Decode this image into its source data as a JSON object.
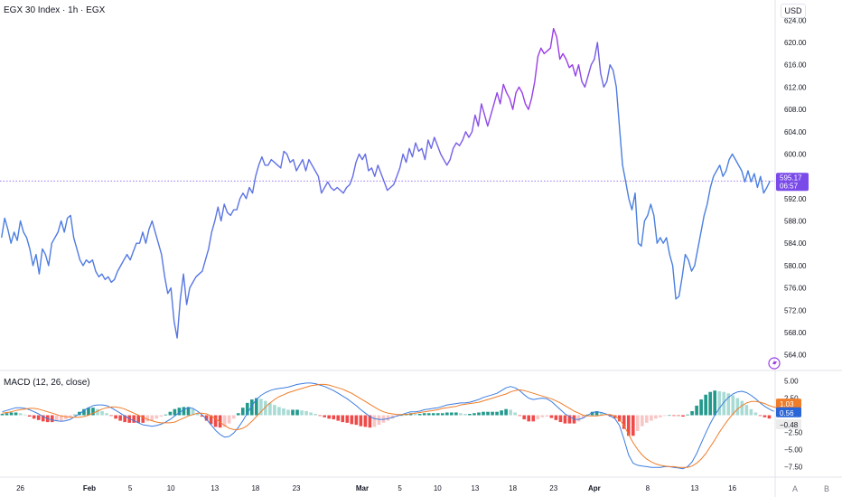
{
  "header": {
    "title": "EGX 30 Index · 1h · EGX"
  },
  "price_axis": {
    "currency": "USD"
  },
  "macd_panel": {
    "title": "MACD (12, 26, close)"
  },
  "colors": {
    "line_start": "#4a7fe0",
    "line_end": "#9a3ee8",
    "macd_line": "#3c7de0",
    "signal_line": "#f07d2a",
    "hist_pos_strong": "#22998c",
    "hist_pos_weak": "#a9dbd5",
    "hist_neg_strong": "#ef4a4a",
    "hist_neg_weak": "#f9c6c6",
    "price_badge": "#7b4bea",
    "badge_orange": "#f07d2a",
    "badge_blue": "#2b66d9",
    "badge_gray": "#ececec"
  },
  "footer": {
    "auto_label": "A",
    "log_label": "B"
  },
  "chart_data": [
    {
      "type": "line",
      "title": "EGX 30 Index · 1h · EGX",
      "ylim": [
        562,
        626
      ],
      "y_ticks": [
        "624.00",
        "620.00",
        "616.00",
        "612.00",
        "608.00",
        "604.00",
        "600.00",
        "596.00",
        "592.00",
        "588.00",
        "584.00",
        "580.00",
        "576.00",
        "572.00",
        "568.00",
        "564.00"
      ],
      "y_tick_values": [
        624,
        620,
        616,
        612,
        608,
        604,
        600,
        596,
        592,
        588,
        584,
        580,
        576,
        572,
        568,
        564
      ],
      "x_tick_labels": [
        "26",
        "Feb",
        "5",
        "10",
        "13",
        "18",
        "23",
        "Mar",
        "5",
        "10",
        "13",
        "18",
        "23",
        "Apr",
        "8",
        "13",
        "16"
      ],
      "x_tick_index": [
        6,
        28,
        41,
        54,
        68,
        81,
        94,
        115,
        127,
        139,
        151,
        163,
        176,
        189,
        206,
        221,
        233
      ],
      "last_price": "595.17",
      "countdown": "06:57",
      "values": [
        585.0,
        588.5,
        586.5,
        584.0,
        586.0,
        584.5,
        588.0,
        586.0,
        585.0,
        583.0,
        580.0,
        582.0,
        578.5,
        583.0,
        582.0,
        580.0,
        584.0,
        585.0,
        586.0,
        588.0,
        586.0,
        588.5,
        589.0,
        585.0,
        583.0,
        581.0,
        580.0,
        581.0,
        580.5,
        581.0,
        579.0,
        578.0,
        578.5,
        577.5,
        578.0,
        577.0,
        577.5,
        579.0,
        580.0,
        581.0,
        582.0,
        581.0,
        582.5,
        584.0,
        584.0,
        586.0,
        584.0,
        586.5,
        588.0,
        586.0,
        584.0,
        582.0,
        578.0,
        575.0,
        576.0,
        570.0,
        567.0,
        574.0,
        578.5,
        573.0,
        576.0,
        577.0,
        578.0,
        578.5,
        579.0,
        581.0,
        583.0,
        586.0,
        588.0,
        590.5,
        588.0,
        591.0,
        589.5,
        589.0,
        590.0,
        590.0,
        592.0,
        593.0,
        592.0,
        594.0,
        593.0,
        596.0,
        598.0,
        599.5,
        598.0,
        598.0,
        599.0,
        598.5,
        598.0,
        597.5,
        600.5,
        600.0,
        598.5,
        599.0,
        597.0,
        598.0,
        599.0,
        597.0,
        599.0,
        598.0,
        597.0,
        596.0,
        593.0,
        594.0,
        595.0,
        594.0,
        593.5,
        594.0,
        593.5,
        593.0,
        594.0,
        594.5,
        596.0,
        598.5,
        600.0,
        599.0,
        600.0,
        597.0,
        597.5,
        596.0,
        598.0,
        596.5,
        595.0,
        593.5,
        594.0,
        594.5,
        596.0,
        597.5,
        600.0,
        598.5,
        601.0,
        599.5,
        602.0,
        600.5,
        601.0,
        599.0,
        602.5,
        601.0,
        603.0,
        601.5,
        600.0,
        599.0,
        598.0,
        599.0,
        601.0,
        602.0,
        601.5,
        602.5,
        604.0,
        603.0,
        604.0,
        607.0,
        605.0,
        609.0,
        607.0,
        605.0,
        607.0,
        609.0,
        611.0,
        609.0,
        612.5,
        611.0,
        610.0,
        608.0,
        611.0,
        612.0,
        611.0,
        609.0,
        608.0,
        610.0,
        613.0,
        617.5,
        619.0,
        618.0,
        618.5,
        619.0,
        622.5,
        621.0,
        617.0,
        618.0,
        617.0,
        615.5,
        616.0,
        614.0,
        616.0,
        613.0,
        612.0,
        614.0,
        616.0,
        617.0,
        620.0,
        614.5,
        612.0,
        613.0,
        616.0,
        615.0,
        612.0,
        605.0,
        598.0,
        595.0,
        592.0,
        590.0,
        593.0,
        584.0,
        583.5,
        588.0,
        589.0,
        591.0,
        589.0,
        584.0,
        585.0,
        584.0,
        585.0,
        582.0,
        580.0,
        574.0,
        574.5,
        578.0,
        582.0,
        581.0,
        579.0,
        580.0,
        583.0,
        586.0,
        589.0,
        591.0,
        594.0,
        596.0,
        597.0,
        598.0,
        596.0,
        597.0,
        599.0,
        600.0,
        599.0,
        598.0,
        597.0,
        595.0,
        597.0,
        595.0,
        596.5,
        594.0,
        596.0,
        593.0,
        594.0,
        595.17
      ]
    },
    {
      "type": "line",
      "title": "MACD (12, 26, close)",
      "ylim": [
        -8.5,
        6
      ],
      "y_ticks": [
        "5.00",
        "2.50",
        "−2.50",
        "−5.00",
        "−7.50"
      ],
      "y_tick_values": [
        5,
        2.5,
        -2.5,
        -5,
        -7.5
      ],
      "zero_label": "0.00",
      "current_values": {
        "signal": "1.03",
        "macd": "0.56",
        "histogram": "−0.48"
      },
      "series": [
        {
          "name": "MACD",
          "color": "#3c7de0",
          "values": [
            0.5,
            0.7,
            0.9,
            1.1,
            1.1,
            1.0,
            0.8,
            0.5,
            0.2,
            -0.2,
            -0.5,
            -0.7,
            -0.8,
            -0.9,
            -0.8,
            -0.6,
            -0.2,
            0.2,
            0.7,
            1.1,
            1.4,
            1.5,
            1.5,
            1.4,
            1.1,
            0.7,
            0.3,
            -0.1,
            -0.5,
            -0.8,
            -1.1,
            -1.4,
            -1.5,
            -1.6,
            -1.5,
            -1.3,
            -1.0,
            -0.6,
            -0.1,
            0.4,
            0.8,
            1.1,
            1.0,
            0.6,
            0.1,
            -0.6,
            -1.4,
            -2.2,
            -2.8,
            -3.2,
            -3.1,
            -2.6,
            -1.8,
            -0.8,
            0.3,
            1.4,
            2.3,
            2.9,
            3.3,
            3.6,
            3.8,
            3.9,
            4.0,
            4.1,
            4.3,
            4.5,
            4.6,
            4.7,
            4.7,
            4.6,
            4.4,
            4.2,
            3.9,
            3.6,
            3.2,
            2.8,
            2.4,
            1.9,
            1.4,
            0.8,
            0.3,
            -0.2,
            -0.5,
            -0.6,
            -0.6,
            -0.5,
            -0.3,
            -0.1,
            0.1,
            0.3,
            0.5,
            0.5,
            0.6,
            0.8,
            0.9,
            1.0,
            1.1,
            1.3,
            1.5,
            1.6,
            1.7,
            1.8,
            1.8,
            1.9,
            2.1,
            2.3,
            2.6,
            2.8,
            3.0,
            3.2,
            3.6,
            4.0,
            4.2,
            4.0,
            3.6,
            3.0,
            2.5,
            2.3,
            2.4,
            2.5,
            2.4,
            2.0,
            1.4,
            0.8,
            0.2,
            -0.2,
            -0.6,
            -0.6,
            -0.4,
            0.0,
            0.4,
            0.5,
            0.4,
            0.2,
            -0.1,
            -0.5,
            -1.5,
            -3.5,
            -5.8,
            -7.0,
            -7.3,
            -7.4,
            -7.5,
            -7.6,
            -7.6,
            -7.6,
            -7.5,
            -7.5,
            -7.6,
            -7.7,
            -7.8,
            -7.5,
            -6.8,
            -5.6,
            -4.1,
            -2.6,
            -1.2,
            0.0,
            1.0,
            1.9,
            2.6,
            3.1,
            3.4,
            3.5,
            3.3,
            2.9,
            2.4,
            1.8,
            1.3,
            0.9,
            0.56
          ]
        },
        {
          "name": "Signal",
          "color": "#f07d2a",
          "values": [
            0.3,
            0.4,
            0.5,
            0.7,
            0.8,
            0.9,
            1.0,
            1.0,
            0.9,
            0.7,
            0.5,
            0.3,
            0.1,
            -0.1,
            -0.2,
            -0.3,
            -0.3,
            -0.3,
            -0.2,
            0.0,
            0.3,
            0.6,
            0.9,
            1.1,
            1.2,
            1.2,
            1.1,
            0.9,
            0.6,
            0.3,
            0.0,
            -0.3,
            -0.6,
            -0.8,
            -1.0,
            -1.1,
            -1.1,
            -1.1,
            -1.0,
            -0.7,
            -0.4,
            -0.1,
            0.1,
            0.3,
            0.3,
            0.2,
            -0.1,
            -0.5,
            -1.0,
            -1.5,
            -1.9,
            -2.1,
            -2.1,
            -1.9,
            -1.5,
            -0.9,
            -0.2,
            0.5,
            1.2,
            1.8,
            2.3,
            2.7,
            3.0,
            3.3,
            3.5,
            3.7,
            3.9,
            4.1,
            4.3,
            4.4,
            4.5,
            4.5,
            4.4,
            4.2,
            4.0,
            3.8,
            3.5,
            3.2,
            2.8,
            2.4,
            2.0,
            1.6,
            1.2,
            0.8,
            0.5,
            0.3,
            0.2,
            0.1,
            0.1,
            0.1,
            0.2,
            0.3,
            0.4,
            0.5,
            0.6,
            0.7,
            0.8,
            1.0,
            1.1,
            1.2,
            1.3,
            1.5,
            1.6,
            1.7,
            1.8,
            1.9,
            2.1,
            2.3,
            2.5,
            2.7,
            2.9,
            3.1,
            3.4,
            3.6,
            3.7,
            3.6,
            3.4,
            3.2,
            3.0,
            2.8,
            2.6,
            2.4,
            2.1,
            1.8,
            1.4,
            1.0,
            0.6,
            0.3,
            0.0,
            -0.1,
            -0.1,
            -0.1,
            0.0,
            0.1,
            0.1,
            -0.1,
            -0.6,
            -1.5,
            -2.8,
            -4.0,
            -5.0,
            -5.8,
            -6.4,
            -6.8,
            -7.1,
            -7.3,
            -7.4,
            -7.5,
            -7.5,
            -7.6,
            -7.6,
            -7.6,
            -7.4,
            -7.0,
            -6.4,
            -5.6,
            -4.6,
            -3.6,
            -2.5,
            -1.5,
            -0.6,
            0.2,
            0.9,
            1.4,
            1.8,
            2.0,
            2.0,
            1.9,
            1.7,
            1.4,
            1.2,
            1.03
          ]
        }
      ],
      "histogram": [
        0.2,
        0.3,
        0.4,
        0.4,
        0.3,
        0.1,
        -0.2,
        -0.5,
        -0.7,
        -0.9,
        -1.0,
        -1.0,
        -0.9,
        -0.8,
        -0.6,
        -0.3,
        0.1,
        0.5,
        0.9,
        1.1,
        1.1,
        0.9,
        0.6,
        0.3,
        -0.1,
        -0.5,
        -0.8,
        -1.0,
        -1.1,
        -1.1,
        -1.1,
        -1.1,
        -0.9,
        -0.8,
        -0.5,
        -0.2,
        0.1,
        0.5,
        0.9,
        1.1,
        1.2,
        1.2,
        0.9,
        0.3,
        -0.2,
        -0.8,
        -1.3,
        -1.7,
        -1.8,
        -1.7,
        -1.2,
        -0.5,
        0.3,
        1.1,
        1.8,
        2.3,
        2.5,
        2.4,
        2.1,
        1.8,
        1.5,
        1.2,
        1.0,
        0.8,
        0.8,
        0.8,
        0.7,
        0.6,
        0.4,
        0.2,
        -0.1,
        -0.3,
        -0.5,
        -0.6,
        -0.8,
        -1.0,
        -1.1,
        -1.3,
        -1.4,
        -1.6,
        -1.7,
        -1.8,
        -1.7,
        -1.4,
        -1.1,
        -0.8,
        -0.5,
        -0.2,
        0.0,
        0.2,
        0.3,
        0.2,
        0.2,
        0.3,
        0.3,
        0.3,
        0.3,
        0.3,
        0.4,
        0.4,
        0.4,
        0.3,
        0.2,
        0.2,
        0.3,
        0.4,
        0.5,
        0.5,
        0.5,
        0.5,
        0.7,
        0.9,
        0.8,
        0.4,
        -0.1,
        -0.6,
        -0.9,
        -0.9,
        -0.6,
        -0.3,
        -0.2,
        -0.4,
        -0.7,
        -1.0,
        -1.2,
        -1.2,
        -1.2,
        -0.9,
        -0.4,
        0.1,
        0.5,
        0.6,
        0.4,
        0.1,
        -0.2,
        -0.4,
        -0.9,
        -2.0,
        -3.0,
        -3.0,
        -2.3,
        -1.6,
        -1.1,
        -0.8,
        -0.5,
        -0.3,
        -0.1,
        0.0,
        -0.1,
        -0.1,
        -0.2,
        0.1,
        0.6,
        1.4,
        2.3,
        3.0,
        3.4,
        3.6,
        3.5,
        3.4,
        3.2,
        2.9,
        2.5,
        2.1,
        1.5,
        0.9,
        0.4,
        -0.1,
        -0.3,
        -0.48
      ]
    }
  ]
}
